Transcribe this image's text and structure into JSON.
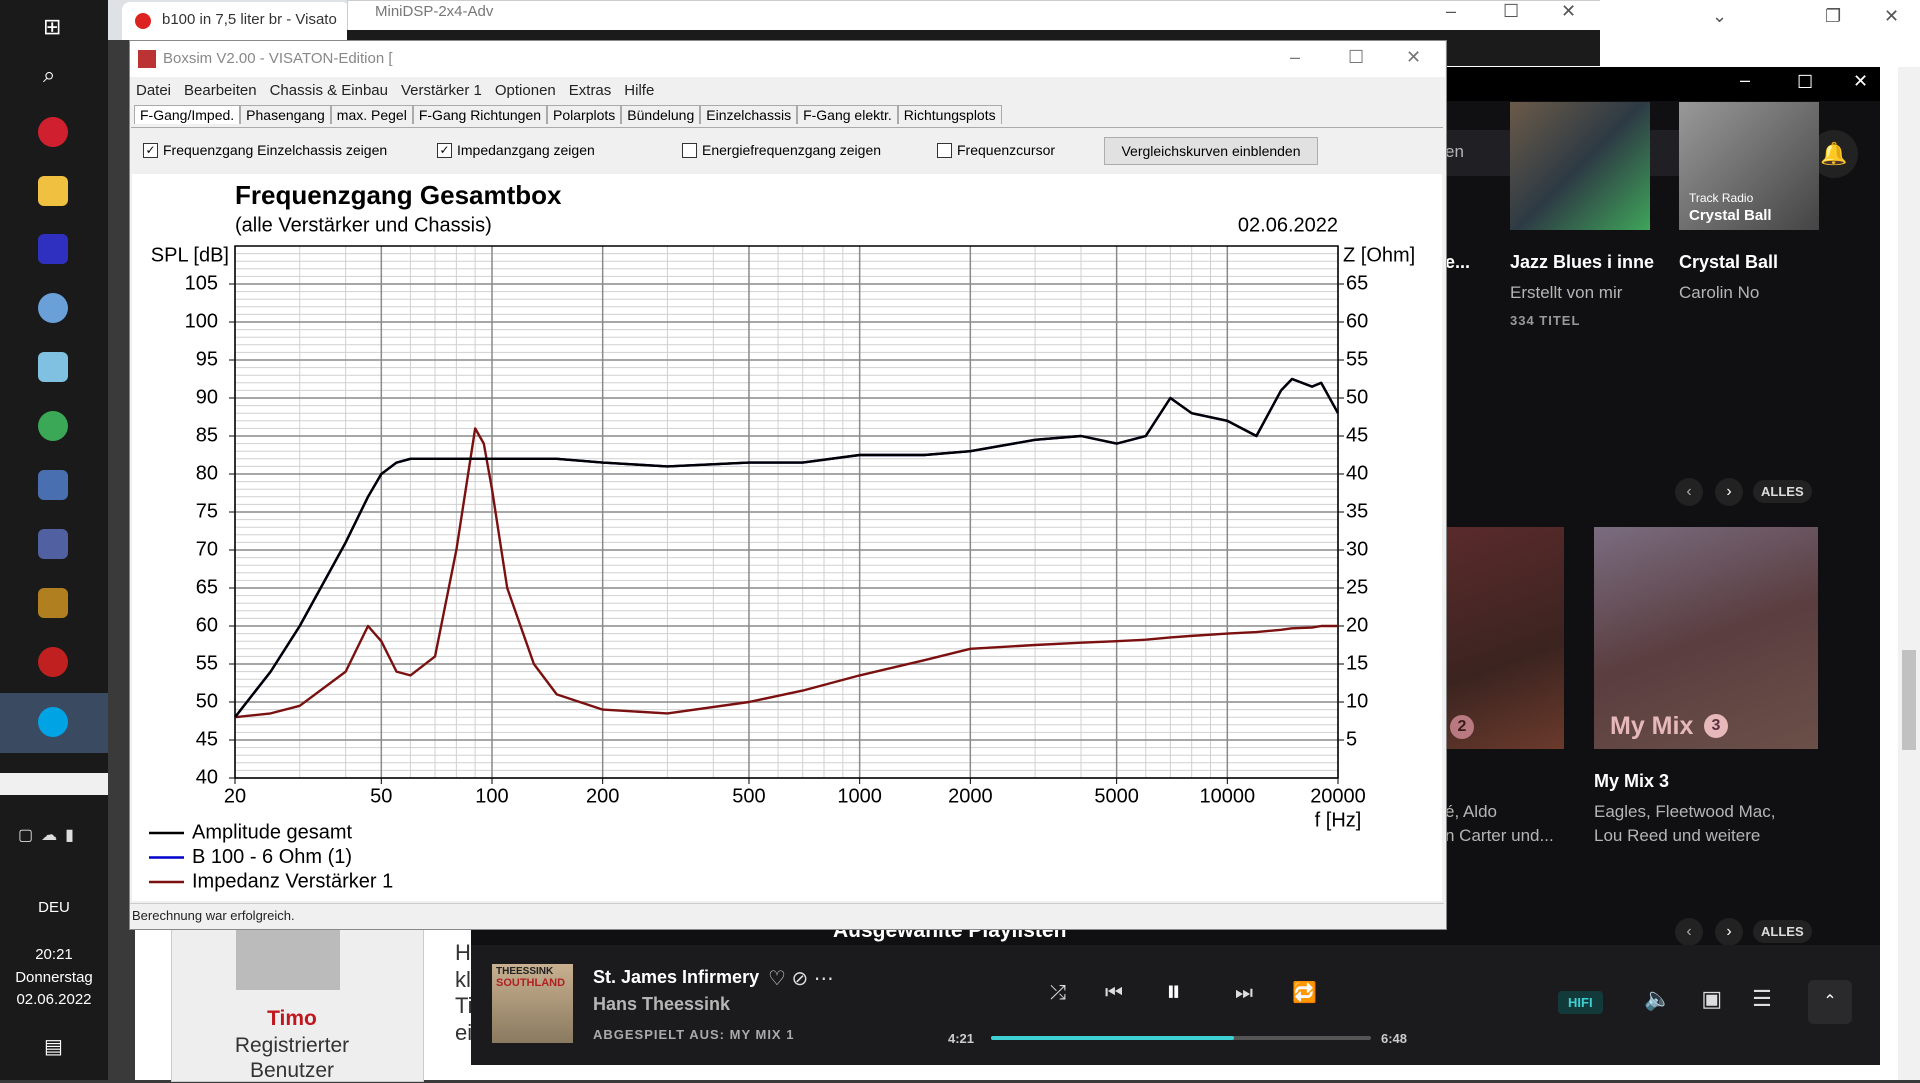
{
  "taskbar": {
    "language": "DEU",
    "time": "20:21",
    "weekday": "Donnerstag",
    "date": "02.06.2022"
  },
  "browser": {
    "tab_title": "b100 in 7,5 liter br - Visato"
  },
  "minidsp": {
    "title": "MiniDSP-2x4-Adv"
  },
  "boxsim": {
    "title": "Boxsim V2.00 - VISATON-Edition [",
    "menu": [
      "Datei",
      "Bearbeiten",
      "Chassis & Einbau",
      "Verstärker 1",
      "Optionen",
      "Extras",
      "Hilfe"
    ],
    "tabs": [
      "F-Gang/Imped.",
      "Phasengang",
      "max. Pegel",
      "F-Gang Richtungen",
      "Polarplots",
      "Bündelung",
      "Einzelchassis",
      "F-Gang elektr.",
      "Richtungsplots"
    ],
    "options": [
      {
        "label": "Frequenzgang Einzelchassis zeigen",
        "checked": true
      },
      {
        "label": "Impedanzgang zeigen",
        "checked": true
      },
      {
        "label": "Energiefrequenzgang zeigen",
        "checked": false
      },
      {
        "label": "Frequenzcursor",
        "checked": false
      }
    ],
    "button": "Vergleichskurven einblenden",
    "status": "Berechnung war erfolgreich."
  },
  "chart_data": {
    "type": "line",
    "title": "Frequenzgang Gesamtbox",
    "subtitle": "(alle Verstärker und Chassis)",
    "date": "02.06.2022",
    "y_label": "SPL [dB]",
    "y2_label": "Z [Ohm]",
    "x_label": "f [Hz]",
    "x_scale": "log",
    "grid": true,
    "minor_grid": true,
    "legend": "bottom-left",
    "x": [
      20,
      25,
      30,
      40,
      46,
      50,
      55,
      60,
      70,
      80,
      90,
      95,
      100,
      110,
      130,
      150,
      200,
      300,
      500,
      700,
      1000,
      1500,
      2000,
      3000,
      4000,
      5000,
      6000,
      7000,
      8000,
      10000,
      12000,
      14000,
      15000,
      17000,
      18000,
      20000
    ],
    "xlim": [
      20,
      20000
    ],
    "xticks": [
      20,
      50,
      100,
      200,
      500,
      1000,
      2000,
      5000,
      10000,
      20000
    ],
    "ylim": [
      40,
      110
    ],
    "yticks": [
      40,
      45,
      50,
      55,
      60,
      65,
      70,
      75,
      80,
      85,
      90,
      95,
      100,
      105
    ],
    "y2lim": [
      0,
      70
    ],
    "y2ticks": [
      5,
      10,
      15,
      20,
      25,
      30,
      35,
      40,
      45,
      50,
      55,
      60,
      65
    ],
    "series": [
      {
        "name": "Amplitude gesamt",
        "color": "#000000",
        "values": [
          48,
          54,
          60,
          71,
          77,
          80,
          81.5,
          82,
          82,
          82,
          82,
          82,
          82,
          82,
          82,
          82,
          81.5,
          81,
          81.5,
          81.5,
          82.5,
          82.5,
          83,
          84.5,
          85,
          84,
          85,
          90,
          88,
          87,
          85,
          91,
          92.5,
          91.5,
          92,
          88
        ]
      },
      {
        "name": "B 100 - 6 Ohm (1)",
        "color": "#0000cc",
        "values": [
          48,
          54,
          60,
          71,
          77,
          80,
          81.5,
          82,
          82,
          82,
          82,
          82,
          82,
          82,
          82,
          82,
          81.5,
          81,
          81.5,
          81.5,
          82.5,
          82.5,
          83,
          84.5,
          85,
          84,
          85,
          90,
          88,
          87,
          85,
          91,
          92.5,
          91.5,
          92,
          88
        ]
      },
      {
        "name": "Impedanz Verstärker 1",
        "color": "#7b1010",
        "axis": "y2",
        "values": [
          8,
          8.5,
          9.5,
          14,
          20,
          18,
          14,
          13.5,
          16,
          30,
          46,
          44,
          38,
          25,
          15,
          11,
          9,
          8.5,
          10,
          11.5,
          13.5,
          15.5,
          17,
          17.5,
          17.8,
          18,
          18.2,
          18.5,
          18.7,
          19,
          19.2,
          19.5,
          19.7,
          19.8,
          20,
          20
        ]
      }
    ]
  },
  "music": {
    "search": "en",
    "card_left_title": "e...",
    "card1_title": "Jazz Blues i inne",
    "card1_subtitle": "Erstellt von mir",
    "card1_count": "334 TITEL",
    "card2_cover_label": "Track Radio",
    "card2_cover_title": "Crystal Ball",
    "card2_title": "Crystal Ball",
    "card2_subtitle": "Carolin No",
    "see_all": [
      "ALLES",
      "ALLES"
    ],
    "mix_left_badge": "2",
    "mix_left_line1": "é, Aldo",
    "mix_left_line2": "n Carter und...",
    "mix3_cover": "My Mix",
    "mix3_badge": "3",
    "mix3_title": "My Mix 3",
    "mix3_line1": "Eagles, Fleetwood Mac,",
    "mix3_line2": "Lou Reed und weitere",
    "section_title": "Ausgewählte Playlisten"
  },
  "player": {
    "track": "St. James Infirmery",
    "artist": "Hans Theessink",
    "source": "ABGESPIELT AUS: MY MIX 1",
    "elapsed": "4:21",
    "duration": "6:48",
    "quality": "HIFI",
    "album_artist": "THEESSINK",
    "album_title": "SOUTHLAND"
  },
  "forum": {
    "user": "Timo",
    "role": [
      "Registrierter",
      "Benutzer"
    ],
    "fragments": [
      "H",
      "kl",
      "Ti",
      "ei"
    ]
  }
}
